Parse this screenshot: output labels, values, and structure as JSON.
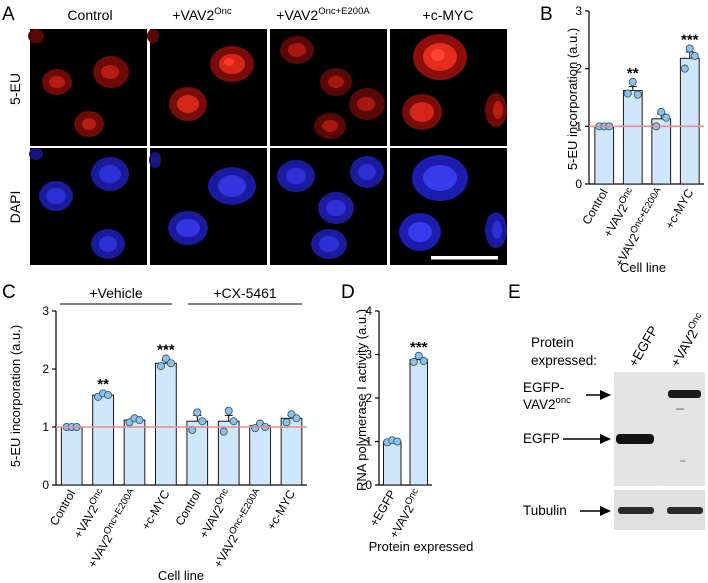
{
  "panels": {
    "A": {
      "label": "A",
      "columns": [
        {
          "base": "Control",
          "sup": ""
        },
        {
          "base": "+VAV2",
          "sup": "Onc"
        },
        {
          "base": "+VAV2",
          "sup": "Onc+E200A"
        },
        {
          "base": "+c-MYC",
          "sup": ""
        }
      ],
      "rows": [
        "5-EU",
        "DAPI"
      ]
    },
    "B": {
      "label": "B"
    },
    "C": {
      "label": "C",
      "groups": [
        "+Vehicle",
        "+CX-5461"
      ]
    },
    "D": {
      "label": "D"
    },
    "E": {
      "label": "E",
      "header_line1": "Protein",
      "header_line2": "expressed:",
      "lanes": [
        {
          "base": "+EGFP",
          "sup": ""
        },
        {
          "base": "+VAV2",
          "sup": "Onc"
        }
      ],
      "band_labels": [
        {
          "line1": "EGFP-",
          "line2": "VAV2",
          "sup": "onc"
        },
        {
          "line1": "EGFP",
          "line2": "",
          "sup": ""
        },
        {
          "line1": "Tubulin",
          "line2": "",
          "sup": ""
        }
      ]
    }
  },
  "chart_data": [
    {
      "panel": "B",
      "type": "bar",
      "categories": [
        {
          "base": "Control",
          "sup": ""
        },
        {
          "base": "+VAV2",
          "sup": "Onc"
        },
        {
          "base": "+VAV2",
          "sup": "Onc+E200A"
        },
        {
          "base": "+c-MYC",
          "sup": ""
        }
      ],
      "values": [
        1.0,
        1.62,
        1.13,
        2.18
      ],
      "errors": [
        0.0,
        0.07,
        0.09,
        0.11
      ],
      "points": [
        [
          1.0,
          1.0,
          1.0
        ],
        [
          1.57,
          1.77,
          1.55
        ],
        [
          1.0,
          1.25,
          1.15
        ],
        [
          2.0,
          2.35,
          2.22
        ]
      ],
      "significance": [
        "",
        "**",
        "",
        "***"
      ],
      "ylabel": "5-EU incorporation (a.u.)",
      "xlabel": "Cell line",
      "ylim": [
        0,
        3
      ],
      "yticks": [
        0,
        1,
        2,
        3
      ],
      "reference_line": 1,
      "bar_color": "#cfe6fb",
      "point_color": "#8ec1e8",
      "reference_color": "#f08a8a"
    },
    {
      "panel": "C",
      "type": "bar",
      "categories": [
        {
          "base": "Control",
          "sup": ""
        },
        {
          "base": "+VAV2",
          "sup": "Onc"
        },
        {
          "base": "+VAV2",
          "sup": "Onc+E200A"
        },
        {
          "base": "+c-MYC",
          "sup": ""
        },
        {
          "base": "Control",
          "sup": ""
        },
        {
          "base": "+VAV2",
          "sup": "Onc"
        },
        {
          "base": "+VAV2",
          "sup": "Onc+E200A"
        },
        {
          "base": "+c-MYC",
          "sup": ""
        }
      ],
      "values": [
        1.0,
        1.55,
        1.12,
        2.1,
        1.1,
        1.1,
        1.02,
        1.15
      ],
      "errors": [
        0.0,
        0.04,
        0.04,
        0.05,
        0.1,
        0.1,
        0.04,
        0.05
      ],
      "points": [
        [
          1.0,
          1.0,
          1.0
        ],
        [
          1.52,
          1.58,
          1.55
        ],
        [
          1.08,
          1.15,
          1.12
        ],
        [
          2.05,
          2.18,
          2.1
        ],
        [
          0.95,
          1.25,
          1.1
        ],
        [
          0.92,
          1.28,
          1.1
        ],
        [
          0.98,
          1.06,
          1.0
        ],
        [
          1.08,
          1.22,
          1.15
        ]
      ],
      "significance": [
        "",
        "**",
        "",
        "***",
        "",
        "",
        "",
        ""
      ],
      "ylabel": "5-EU incorporation (a.u.)",
      "xlabel": "Cell line",
      "ylim": [
        0,
        3
      ],
      "yticks": [
        0,
        1,
        2,
        3
      ],
      "reference_line": 1,
      "bar_color": "#cfe6fb",
      "point_color": "#8ec1e8",
      "reference_color": "#f08a8a"
    },
    {
      "panel": "D",
      "type": "bar",
      "categories": [
        {
          "base": "+EGFP",
          "sup": ""
        },
        {
          "base": "+VAV2",
          "sup": "Onc"
        }
      ],
      "values": [
        1.0,
        2.88
      ],
      "errors": [
        0.03,
        0.06
      ],
      "points": [
        [
          0.98,
          1.03,
          1.0
        ],
        [
          2.83,
          2.97,
          2.85
        ]
      ],
      "significance": [
        "",
        "***"
      ],
      "ylabel": "RNA polymerase I activity (a.u.)",
      "xlabel": "Protein expressed",
      "ylim": [
        0,
        4
      ],
      "yticks": [
        0,
        1,
        2,
        3,
        4
      ],
      "bar_color": "#cfe6fb",
      "point_color": "#8ec1e8"
    }
  ]
}
